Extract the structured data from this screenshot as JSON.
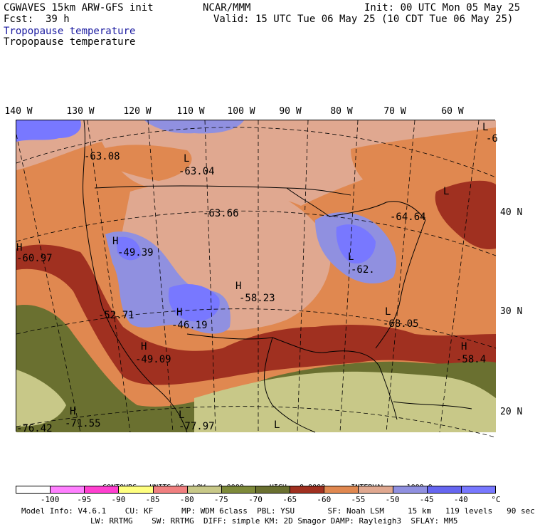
{
  "header": {
    "model": "CGWAVES 15km ARW-GFS init",
    "fcst_label": "Fcst:",
    "fcst_value": "39 h",
    "org": "NCAR/MMM",
    "init": "Init: 00 UTC Mon 05 May 25",
    "valid": "Valid: 15 UTC Tue 06 May 25 (10 CDT Tue 06 May 25)",
    "field_blue": "Tropopause temperature",
    "field_black": "Tropopause temperature"
  },
  "lon_labels": [
    "140 W",
    "130 W",
    "120 W",
    "110 W",
    "100 W",
    "90 W",
    "80 W",
    "70 W",
    "60 W"
  ],
  "lat_labels": [
    "40 N",
    "30 N",
    "20 N"
  ],
  "map_labels": [
    {
      "text": "-63.08"
    },
    {
      "text": "L"
    },
    {
      "text": "-63.04"
    },
    {
      "text": "-63.66"
    },
    {
      "text": "-64.64"
    },
    {
      "text": "H"
    },
    {
      "text": "-49.39"
    },
    {
      "text": "H"
    },
    {
      "text": "-60.97"
    },
    {
      "text": "L"
    },
    {
      "text": "-62."
    },
    {
      "text": "H"
    },
    {
      "text": "-58.23"
    },
    {
      "text": "-52.71"
    },
    {
      "text": "H"
    },
    {
      "text": "-46.19"
    },
    {
      "text": "L"
    },
    {
      "text": "-68.05"
    },
    {
      "text": "H"
    },
    {
      "text": "-49.09"
    },
    {
      "text": "H"
    },
    {
      "text": "-58.4"
    },
    {
      "text": "H"
    },
    {
      "text": "-71.55"
    },
    {
      "text": "-76.42"
    },
    {
      "text": "L"
    },
    {
      "text": "-77.97"
    },
    {
      "text": "L"
    },
    {
      "text": "L"
    },
    {
      "text": "-6"
    },
    {
      "text": "L"
    }
  ],
  "contours": {
    "label": "CONTOURS:",
    "units": "UNITS=°C",
    "low": "LOW=  0.0000",
    "high": "HIGH=  0.0000",
    "interval": "INTERVAL=    1000.0"
  },
  "colorbar": {
    "colors": [
      "#ffffff",
      "#ff80ff",
      "#ff40d0",
      "#ffff80",
      "#f08080",
      "#c8c888",
      "#7e8a3a",
      "#6a7030",
      "#a03020",
      "#e08850",
      "#e0a890",
      "#9090e0",
      "#6666f0",
      "#7878ff"
    ],
    "labels": [
      "-100",
      "-95",
      "-90",
      "-85",
      "-80",
      "-75",
      "-70",
      "-65",
      "-60",
      "-55",
      "-50",
      "-45",
      "-40"
    ],
    "unit": "°C"
  },
  "footer": {
    "line1": "Model Info: V4.6.1    CU: KF      MP: WDM 6class  PBL: YSU       SF: Noah LSM     15 km   119 levels   90 sec",
    "line2": "LW: RRTMG    SW: RRTMG  DIFF: simple KM: 2D Smagor DAMP: Rayleigh3  SFLAY: MM5"
  }
}
